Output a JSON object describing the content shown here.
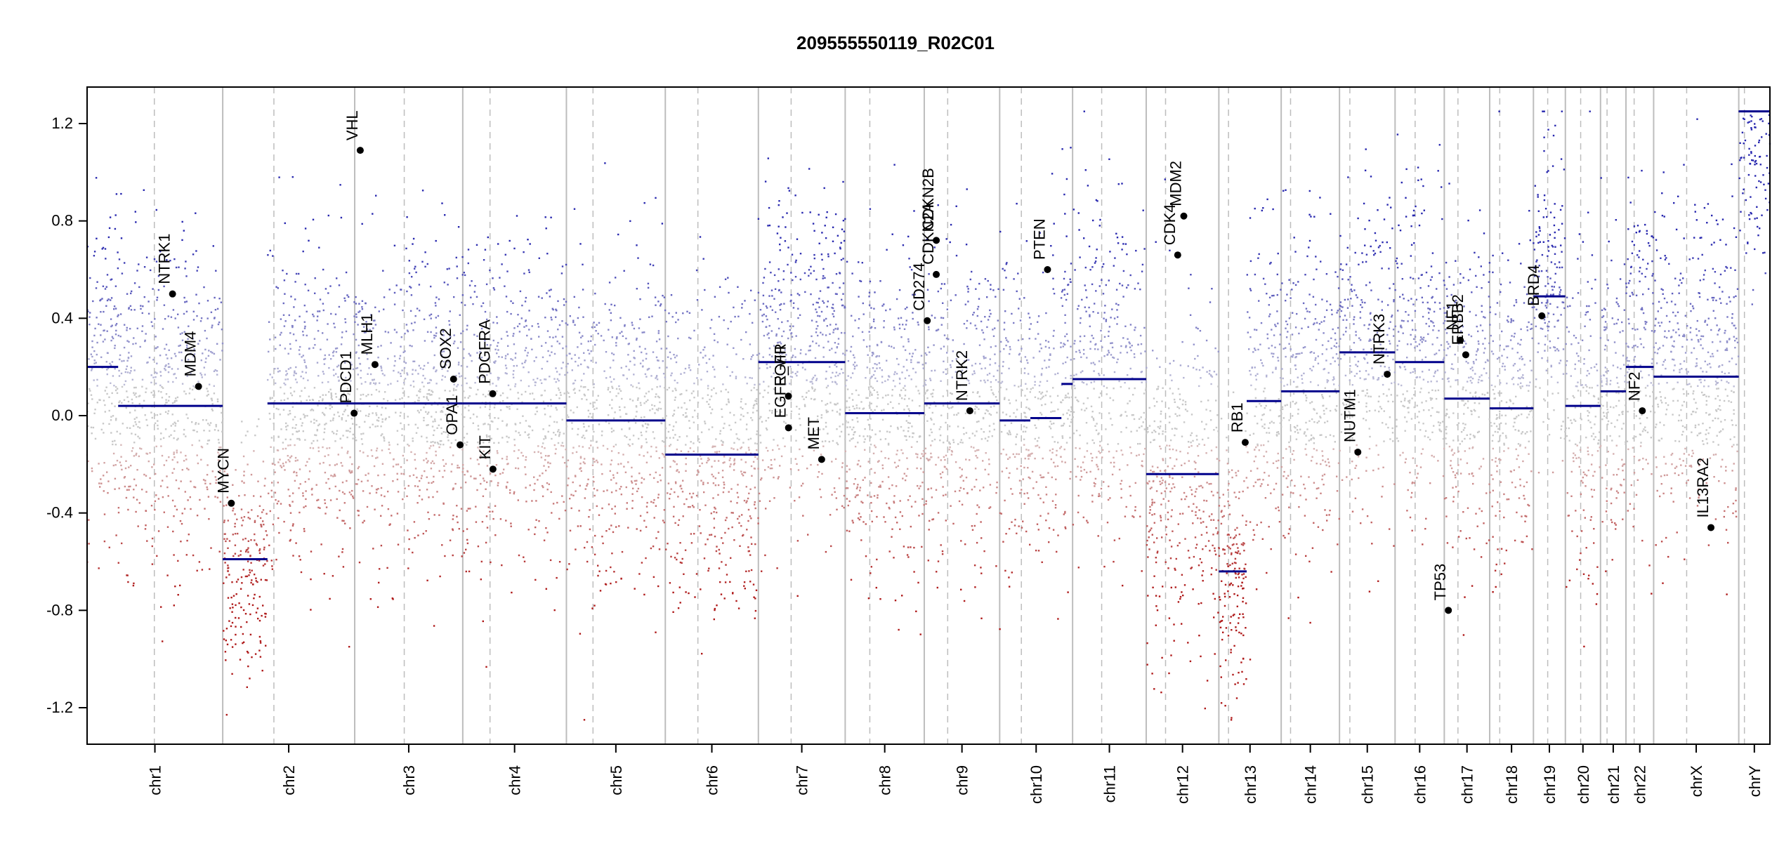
{
  "chart_data": {
    "type": "scatter",
    "title": "209555550119_R02C01",
    "xlabel": "",
    "ylabel": "",
    "ylim": [
      -1.35,
      1.35
    ],
    "yticks": [
      -1.2,
      -0.8,
      -0.4,
      0.0,
      0.4,
      0.8,
      1.2
    ],
    "ytick_labels": [
      "-1.2",
      "-0.8",
      "-0.4",
      "0.0",
      "0.4",
      "0.8",
      "1.2"
    ],
    "grid": false,
    "colors": {
      "gain": "#2a2aa8",
      "loss": "#b01a1a",
      "neutral": "#c8c8c8",
      "segment": "#00008b",
      "gene": "#000000",
      "boundary": "#bdbdbd"
    },
    "chromosomes": [
      {
        "name": "chr1",
        "start": 0.0,
        "end": 248.9,
        "centromere": 123.4,
        "level": 0.3
      },
      {
        "name": "chr2",
        "start": 248.9,
        "end": 491.1,
        "centromere": 93.9,
        "level": 0.05
      },
      {
        "name": "chr3",
        "start": 491.1,
        "end": 689.4,
        "centromere": 90.9,
        "level": 0.05
      },
      {
        "name": "chr4",
        "start": 689.4,
        "end": 879.6,
        "centromere": 50.0,
        "level": 0.05
      },
      {
        "name": "chr5",
        "start": 879.6,
        "end": 1061.1,
        "centromere": 48.8,
        "level": -0.02
      },
      {
        "name": "chr6",
        "start": 1061.1,
        "end": 1231.9,
        "centromere": 59.8,
        "level": -0.16
      },
      {
        "name": "chr7",
        "start": 1231.9,
        "end": 1391.2,
        "centromere": 60.1,
        "level": 0.21
      },
      {
        "name": "chr8",
        "start": 1391.2,
        "end": 1536.3,
        "centromere": 45.2,
        "level": 0.01
      },
      {
        "name": "chr9",
        "start": 1536.3,
        "end": 1674.7,
        "centromere": 43.0,
        "level": 0.05
      },
      {
        "name": "chr10",
        "start": 1674.7,
        "end": 1808.5,
        "centromere": 39.8,
        "level": -0.1
      },
      {
        "name": "chr11",
        "start": 1808.5,
        "end": 1943.6,
        "centromere": 53.4,
        "level": 0.15
      },
      {
        "name": "chr12",
        "start": 1943.6,
        "end": 2076.9,
        "centromere": 35.5,
        "level": -0.24
      },
      {
        "name": "chr13",
        "start": 2076.9,
        "end": 2191.3,
        "centromere": 17.7,
        "level": -0.2
      },
      {
        "name": "chr14",
        "start": 2191.3,
        "end": 2298.3,
        "centromere": 17.2,
        "level": 0.1
      },
      {
        "name": "chr15",
        "start": 2298.3,
        "end": 2400.3,
        "centromere": 19.0,
        "level": 0.26
      },
      {
        "name": "chr16",
        "start": 2400.3,
        "end": 2490.6,
        "centromere": 36.8,
        "level": 0.22
      },
      {
        "name": "chr17",
        "start": 2490.6,
        "end": 2573.9,
        "centromere": 25.1,
        "level": 0.07
      },
      {
        "name": "chr18",
        "start": 2573.9,
        "end": 2654.2,
        "centromere": 18.5,
        "level": 0.03
      },
      {
        "name": "chr19",
        "start": 2654.2,
        "end": 2712.8,
        "centromere": 26.2,
        "level": 0.49
      },
      {
        "name": "chr20",
        "start": 2712.8,
        "end": 2777.3,
        "centromere": 28.1,
        "level": 0.04
      },
      {
        "name": "chr21",
        "start": 2777.3,
        "end": 2824.0,
        "centromere": 12.0,
        "level": 0.1
      },
      {
        "name": "chr22",
        "start": 2824.0,
        "end": 2874.8,
        "centromere": 15.0,
        "level": 0.2
      },
      {
        "name": "chrX",
        "start": 2874.8,
        "end": 3031.0,
        "centromere": 60.6,
        "level": 0.15
      },
      {
        "name": "chrY",
        "start": 3031.0,
        "end": 3088.2,
        "centromere": 10.4,
        "level": 1.25
      }
    ],
    "segments": [
      {
        "start": 0.0,
        "end": 57.0,
        "value": 0.2
      },
      {
        "start": 57.0,
        "end": 248.9,
        "value": 0.04
      },
      {
        "start": 248.9,
        "end": 331.0,
        "value": -0.59
      },
      {
        "start": 331.0,
        "end": 689.4,
        "value": 0.05
      },
      {
        "start": 689.4,
        "end": 879.6,
        "value": 0.05
      },
      {
        "start": 879.6,
        "end": 1061.1,
        "value": -0.02
      },
      {
        "start": 1061.1,
        "end": 1231.9,
        "value": -0.16
      },
      {
        "start": 1231.9,
        "end": 1391.2,
        "value": 0.22
      },
      {
        "start": 1391.2,
        "end": 1536.3,
        "value": 0.01
      },
      {
        "start": 1536.3,
        "end": 1674.7,
        "value": 0.05
      },
      {
        "start": 1674.7,
        "end": 1731.0,
        "value": -0.02
      },
      {
        "start": 1731.0,
        "end": 1788.0,
        "value": -0.01
      },
      {
        "start": 1788.0,
        "end": 1808.5,
        "value": 0.13
      },
      {
        "start": 1808.5,
        "end": 1943.6,
        "value": 0.15
      },
      {
        "start": 1943.6,
        "end": 2076.9,
        "value": -0.24
      },
      {
        "start": 2076.9,
        "end": 2128.0,
        "value": -0.64
      },
      {
        "start": 2128.0,
        "end": 2191.3,
        "value": 0.06
      },
      {
        "start": 2191.3,
        "end": 2298.3,
        "value": 0.1
      },
      {
        "start": 2298.3,
        "end": 2400.3,
        "value": 0.26
      },
      {
        "start": 2400.3,
        "end": 2490.6,
        "value": 0.22
      },
      {
        "start": 2490.6,
        "end": 2573.9,
        "value": 0.07
      },
      {
        "start": 2573.9,
        "end": 2654.2,
        "value": 0.03
      },
      {
        "start": 2654.2,
        "end": 2712.8,
        "value": 0.49
      },
      {
        "start": 2712.8,
        "end": 2777.3,
        "value": 0.04
      },
      {
        "start": 2777.3,
        "end": 2824.0,
        "value": 0.1
      },
      {
        "start": 2824.0,
        "end": 2874.8,
        "value": 0.2
      },
      {
        "start": 2874.8,
        "end": 3031.0,
        "value": 0.16
      },
      {
        "start": 3031.0,
        "end": 3088.2,
        "value": 1.25
      }
    ],
    "genes": [
      {
        "name": "NTRK1",
        "pos": 156.8,
        "value": 0.5
      },
      {
        "name": "MDM4",
        "pos": 204.5,
        "value": 0.12
      },
      {
        "name": "MYCN",
        "pos": 264.7,
        "value": -0.36
      },
      {
        "name": "PDCD1",
        "pos": 490.0,
        "value": 0.01
      },
      {
        "name": "VHL",
        "pos": 501.3,
        "value": 1.09
      },
      {
        "name": "MLH1",
        "pos": 528.3,
        "value": 0.21
      },
      {
        "name": "SOX2",
        "pos": 672.5,
        "value": 0.15
      },
      {
        "name": "OPA1",
        "pos": 684.5,
        "value": -0.12
      },
      {
        "name": "PDGFRA",
        "pos": 744.4,
        "value": 0.09
      },
      {
        "name": "KIT",
        "pos": 744.8,
        "value": -0.22
      },
      {
        "name": "EGFR",
        "pos": 1287.0,
        "value": 0.08
      },
      {
        "name": "EGFR_vIII",
        "pos": 1287.2,
        "value": -0.05
      },
      {
        "name": "MET",
        "pos": 1348.0,
        "value": -0.18
      },
      {
        "name": "CD274",
        "pos": 1541.8,
        "value": 0.39
      },
      {
        "name": "CDKN2A",
        "pos": 1558.3,
        "value": 0.58
      },
      {
        "name": "CDKN2B",
        "pos": 1558.4,
        "value": 0.72
      },
      {
        "name": "NTRK2",
        "pos": 1620.0,
        "value": 0.02
      },
      {
        "name": "PTEN",
        "pos": 1762.5,
        "value": 0.6
      },
      {
        "name": "CDK4",
        "pos": 2001.4,
        "value": 0.66
      },
      {
        "name": "MDM2",
        "pos": 2012.6,
        "value": 0.82
      },
      {
        "name": "RB1",
        "pos": 2125.3,
        "value": -0.11
      },
      {
        "name": "NUTM1",
        "pos": 2332.0,
        "value": -0.15
      },
      {
        "name": "NTRK3",
        "pos": 2386.0,
        "value": 0.17
      },
      {
        "name": "TP53",
        "pos": 2498.1,
        "value": -0.8
      },
      {
        "name": "NF1",
        "pos": 2520.0,
        "value": 0.31
      },
      {
        "name": "ERBB2",
        "pos": 2530.0,
        "value": 0.25
      },
      {
        "name": "BRD4",
        "pos": 2669.6,
        "value": 0.41
      },
      {
        "name": "NF2",
        "pos": 2854.0,
        "value": 0.02
      },
      {
        "name": "IL13RA2",
        "pos": 2980.0,
        "value": -0.46
      }
    ]
  }
}
